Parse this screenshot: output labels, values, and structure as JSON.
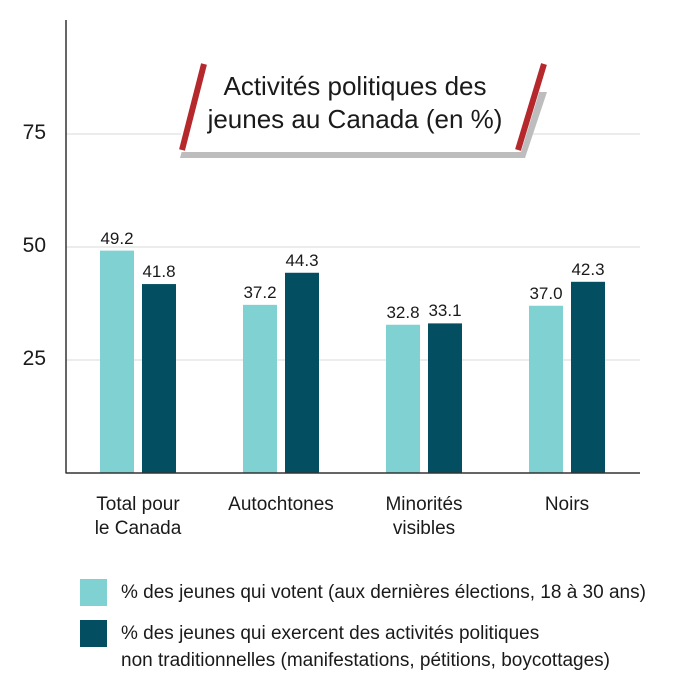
{
  "chart_data": {
    "type": "bar",
    "title_line1": "Activités politiques des",
    "title_line2": "jeunes au Canada (en %)",
    "categories": [
      [
        "Total pour",
        "le Canada"
      ],
      [
        "Autochtones"
      ],
      [
        "Minorités",
        "visibles"
      ],
      [
        "Noirs"
      ]
    ],
    "series": [
      {
        "name": "% des jeunes qui votent (aux dernières élections, 18 à 30 ans)",
        "color": "#7fd1d2",
        "values": [
          49.2,
          37.2,
          32.8,
          37.0
        ],
        "labels": [
          "49.2",
          "37.2",
          "32.8",
          "37.0"
        ]
      },
      {
        "name": "% des jeunes qui exercent des activités politiques non traditionnelles (manifestations, pétitions, boycottages)",
        "name_line1": "% des jeunes qui exercent des activités politiques",
        "name_line2": "non traditionnelles (manifestations, pétitions, boycottages)",
        "color": "#034e61",
        "values": [
          41.8,
          44.3,
          33.1,
          42.3
        ],
        "labels": [
          "41.8",
          "44.3",
          "33.1",
          "42.3"
        ]
      }
    ],
    "y_ticks": [
      "25",
      "50",
      "75"
    ],
    "y_tick_values": [
      25,
      50,
      75
    ],
    "ylim": [
      0,
      100
    ],
    "grid": true,
    "legend": "bottom"
  },
  "colors": {
    "accent_slash": "#b5282c",
    "gridline": "#d9d9d9",
    "axis": "#333333"
  }
}
